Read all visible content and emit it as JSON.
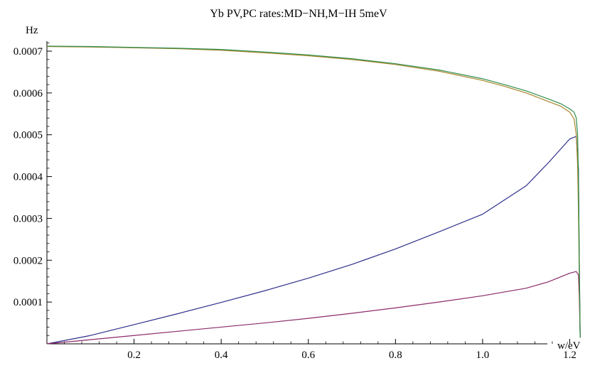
{
  "chart_data": {
    "type": "line",
    "title": "Yb PV,PC rates:MD−NH,M−IH 5meV",
    "xlabel": "w/eV",
    "ylabel": "Hz",
    "xlim": [
      0,
      1.24
    ],
    "ylim": [
      0,
      0.00074
    ],
    "grid": false,
    "x_ticks": [
      {
        "value": 0.2,
        "label": "0.2"
      },
      {
        "value": 0.4,
        "label": "0.4"
      },
      {
        "value": 0.6,
        "label": "0.6"
      },
      {
        "value": 0.8,
        "label": "0.8"
      },
      {
        "value": 1.0,
        "label": "1.0"
      },
      {
        "value": 1.2,
        "label": "1.2"
      }
    ],
    "y_ticks": [
      {
        "value": 0.0001,
        "label": "0.0001"
      },
      {
        "value": 0.0002,
        "label": "0.0002"
      },
      {
        "value": 0.0003,
        "label": "0.0003"
      },
      {
        "value": 0.0004,
        "label": "0.0004"
      },
      {
        "value": 0.0005,
        "label": "0.0005"
      },
      {
        "value": 0.0006,
        "label": "0.0006"
      },
      {
        "value": 0.0007,
        "label": "0.0007"
      }
    ],
    "series": [
      {
        "color": "#2e2f8c",
        "x": [
          0,
          0.1,
          0.2,
          0.3,
          0.4,
          0.5,
          0.6,
          0.7,
          0.8,
          0.9,
          1.0,
          1.1,
          1.15,
          1.2,
          1.215,
          1.22,
          1.222,
          1.224
        ],
        "y": [
          0,
          2e-05,
          4.6e-05,
          7.2e-05,
          9.9e-05,
          0.000127,
          0.000157,
          0.00019,
          0.000227,
          0.000268,
          0.00031,
          0.000378,
          0.000432,
          0.00049,
          0.000496,
          0.00042,
          0.00018,
          1.5e-05
        ]
      },
      {
        "color": "#8c2a6a",
        "x": [
          0,
          0.1,
          0.2,
          0.3,
          0.4,
          0.5,
          0.6,
          0.7,
          0.8,
          0.9,
          1.0,
          1.1,
          1.15,
          1.2,
          1.215,
          1.22,
          1.222,
          1.224
        ],
        "y": [
          0,
          1e-05,
          2e-05,
          3e-05,
          4e-05,
          5e-05,
          6.1e-05,
          7.3e-05,
          8.6e-05,
          0.0001,
          0.000115,
          0.000133,
          0.000148,
          0.000169,
          0.000173,
          0.000165,
          0.00011,
          1.5e-05
        ]
      },
      {
        "color": "#a8852a",
        "x": [
          0,
          0.1,
          0.2,
          0.3,
          0.4,
          0.5,
          0.6,
          0.7,
          0.8,
          0.9,
          1.0,
          1.05,
          1.1,
          1.15,
          1.18,
          1.2,
          1.21,
          1.215,
          1.218,
          1.22,
          1.222,
          1.224
        ],
        "y": [
          0.000711,
          0.00071,
          0.000708,
          0.000706,
          0.000702,
          0.000696,
          0.000689,
          0.00068,
          0.000668,
          0.000652,
          0.00063,
          0.000616,
          0.0006,
          0.00058,
          0.000568,
          0.000554,
          0.000538,
          0.0005,
          0.00043,
          0.00032,
          0.00015,
          1.5e-05
        ]
      },
      {
        "color": "#2e8c4a",
        "x": [
          0,
          0.1,
          0.2,
          0.3,
          0.4,
          0.5,
          0.6,
          0.7,
          0.8,
          0.9,
          1.0,
          1.05,
          1.1,
          1.15,
          1.18,
          1.2,
          1.21,
          1.215,
          1.218,
          1.22,
          1.222,
          1.224
        ],
        "y": [
          0.000712,
          0.000711,
          0.000709,
          0.000707,
          0.000704,
          0.000698,
          0.000691,
          0.000682,
          0.00067,
          0.000655,
          0.000634,
          0.00062,
          0.000605,
          0.000586,
          0.000574,
          0.000562,
          0.000554,
          0.00054,
          0.0005,
          0.0004,
          0.0002,
          1.5e-05
        ]
      }
    ]
  }
}
